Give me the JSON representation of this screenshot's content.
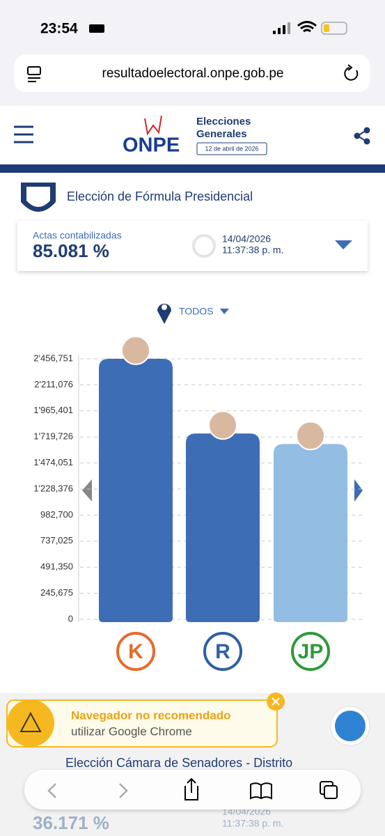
{
  "status": {
    "time": "23:54"
  },
  "browser": {
    "url": "resultadoelectoral.onpe.gob.pe"
  },
  "header": {
    "logo": "ONPE",
    "line1": "Elecciones",
    "line2": "Generales",
    "date": "12 de abril de 2026"
  },
  "section": {
    "title": "Elección de Fórmula Presidencial",
    "actas_label": "Actas contabilizadas",
    "actas_value": "85.081 %",
    "date": "14/04/2026",
    "time": "11:37:38 p. m.",
    "filter": "TODOS"
  },
  "chart_data": {
    "type": "bar",
    "categories": [
      "K",
      "R",
      "JP"
    ],
    "values": [
      2456751,
      1752000,
      1653000
    ],
    "colors": [
      "#3d6db5",
      "#3d6db5",
      "#93bde3"
    ],
    "ylim": [
      0,
      2456751
    ],
    "yticks": [
      0,
      {
        "value": 245675,
        "label": "245,675"
      },
      {
        "value": 491350,
        "label": "491,350"
      },
      {
        "value": 737025,
        "label": "737,025"
      },
      {
        "value": 982700,
        "label": "982,700"
      },
      {
        "value": 1228376,
        "label": "1'228,376"
      },
      {
        "value": 1474051,
        "label": "1'474,051"
      },
      {
        "value": 1719726,
        "label": "1'719,726"
      },
      {
        "value": 1965401,
        "label": "1'965,401"
      },
      {
        "value": 2211076,
        "label": "2'211,076"
      },
      {
        "value": 2456751,
        "label": "2'456,751"
      }
    ],
    "grid": true
  },
  "warning": {
    "title": "Navegador no recomendado",
    "text": "utilizar Google Chrome"
  },
  "section2": {
    "title": "Elección Cámara de Senadores - Distrito",
    "actas_value": "36.171 %",
    "date": "14/04/2026",
    "time": "11:37:38 p. m."
  }
}
